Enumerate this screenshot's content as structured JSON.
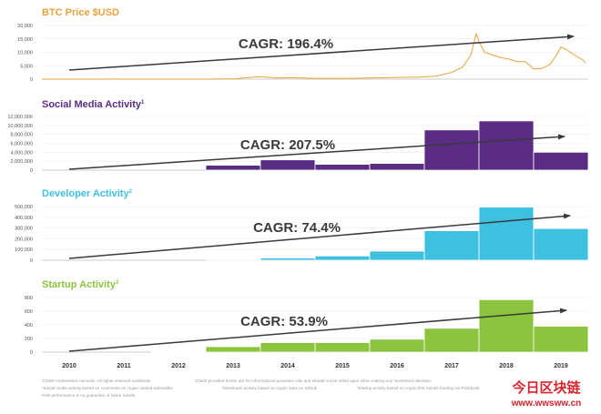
{
  "chart_data": [
    {
      "type": "line",
      "title": "BTC Price $USD",
      "title_sup": "",
      "color": "#E8A33B",
      "ylim": [
        0,
        20000
      ],
      "y_ticks": [
        "0",
        "5,000",
        "10,000",
        "15,000",
        "20,000"
      ],
      "x": [
        2010.0,
        2010.5,
        2011.0,
        2011.4,
        2011.5,
        2011.8,
        2012.0,
        2012.5,
        2013.0,
        2013.3,
        2013.5,
        2013.9,
        2014.0,
        2014.3,
        2014.6,
        2015.0,
        2015.5,
        2016.0,
        2016.5,
        2016.9,
        2017.2,
        2017.5,
        2017.7,
        2017.85,
        2017.95,
        2018.0,
        2018.1,
        2018.25,
        2018.4,
        2018.55,
        2018.7,
        2018.85,
        2019.0,
        2019.15,
        2019.3,
        2019.45,
        2019.5,
        2019.6,
        2019.75,
        2019.9,
        2019.95
      ],
      "values": [
        0,
        0,
        1,
        30,
        15,
        3,
        5,
        10,
        15,
        100,
        90,
        800,
        900,
        450,
        550,
        250,
        250,
        400,
        650,
        750,
        1100,
        2500,
        4500,
        9000,
        17000,
        14000,
        10000,
        9000,
        8000,
        7500,
        6500,
        6500,
        3800,
        4000,
        5500,
        10000,
        12000,
        11000,
        9000,
        7200,
        6000
      ],
      "annotation": "CAGR: 196.4%"
    },
    {
      "type": "bar",
      "title": "Social Media Activity",
      "title_sup": "1",
      "color": "#5B2C83",
      "ylim": [
        0,
        12000000
      ],
      "y_ticks": [
        "0",
        "2,000,000",
        "4,000,000",
        "6,000,000",
        "8,000,000",
        "10,000,000",
        "12,000,000"
      ],
      "values": [
        0,
        0,
        0,
        1100000,
        2300000,
        1300000,
        1500000,
        9000000,
        11000000,
        4000000
      ],
      "annotation": "CAGR: 207.5%"
    },
    {
      "type": "bar",
      "title": "Developer Activity",
      "title_sup": "2",
      "color": "#3EC1E0",
      "ylim": [
        0,
        500000
      ],
      "y_ticks": [
        "0",
        "100,000",
        "200,000",
        "300,000",
        "400,000",
        "500,000"
      ],
      "values": [
        0,
        0,
        0,
        8000,
        20000,
        40000,
        85000,
        275000,
        495000,
        295000
      ],
      "annotation": "CAGR: 74.4%"
    },
    {
      "type": "bar",
      "title": "Startup Activity",
      "title_sup": "3",
      "color": "#8CC43F",
      "ylim": [
        0,
        800
      ],
      "y_ticks": [
        "0",
        "200",
        "400",
        "600",
        "800"
      ],
      "values": [
        0,
        0,
        10,
        80,
        140,
        140,
        190,
        350,
        770,
        380
      ],
      "annotation": "CAGR: 53.9%"
    }
  ],
  "x_axis": {
    "categories": [
      "2010",
      "2011",
      "2012",
      "2013",
      "2014",
      "2015",
      "2016",
      "2017",
      "2018",
      "2019"
    ]
  },
  "footnotes": [
    "©2020 Andreessen Horowitz. All rights reserved worldwide.",
    "Charts provided herein are for informational purposes only and should not be relied upon when making any investment decision.",
    "¹Social media activity based on comments on crypto related subreddits",
    "²Developer activity based on crypto stars on Github",
    "³Startup activity based on crypto first rounds funding via Pitchbook",
    "Past performance is no guarantee of future results."
  ],
  "watermark": {
    "line1": "今日区块链",
    "line2": "www.wwsww.cn"
  }
}
